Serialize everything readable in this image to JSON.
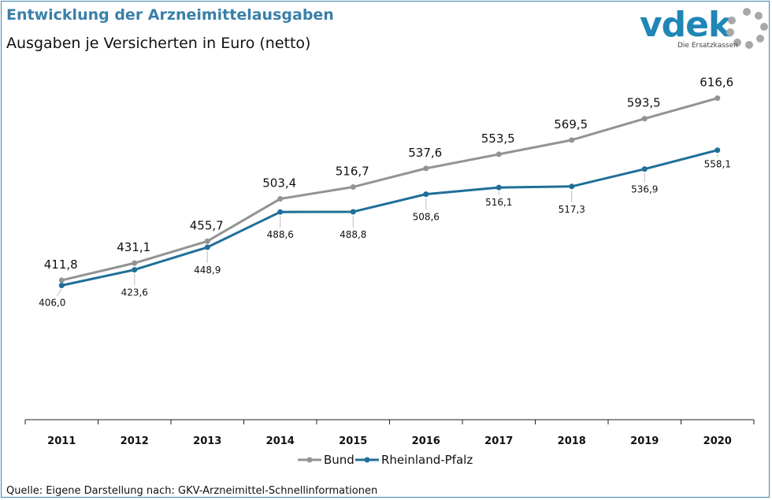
{
  "title": "Entwicklung der Arzneimittelausgaben",
  "subtitle": "Ausgaben je Versicherten in Euro (netto)",
  "logo": {
    "word": "vdek",
    "tagline": "Die Ersatzkassen",
    "icon": "dotted-ring-logo"
  },
  "source": "Quelle: Eigene Darstellung nach: GKV-Arzneimittel-Schnellinformationen",
  "colors": {
    "bund": "#939393",
    "rlp": "#1f6f98",
    "accent": "#3a7fa8"
  },
  "chart_data": {
    "type": "line",
    "title": "",
    "xlabel": "",
    "ylabel": "",
    "categories": [
      "2011",
      "2012",
      "2013",
      "2014",
      "2015",
      "2016",
      "2017",
      "2018",
      "2019",
      "2020"
    ],
    "series": [
      {
        "name": "Bund",
        "values": [
          411.8,
          431.1,
          455.7,
          503.4,
          516.7,
          537.6,
          553.5,
          569.5,
          593.5,
          616.6
        ],
        "labels": [
          "411,8",
          "431,1",
          "455,7",
          "503,4",
          "516,7",
          "537,6",
          "553,5",
          "569,5",
          "593,5",
          "616,6"
        ]
      },
      {
        "name": "Rheinland-Pfalz",
        "values": [
          406.0,
          423.6,
          448.9,
          488.6,
          488.8,
          508.6,
          516.1,
          517.3,
          536.9,
          558.1
        ],
        "labels": [
          "406,0",
          "423,6",
          "448,9",
          "488,6",
          "488,8",
          "508,6",
          "516,1",
          "517,3",
          "536,9",
          "558,1"
        ]
      }
    ],
    "ylim": [
      255,
      665
    ],
    "grid": false,
    "legend": "bottom-center"
  }
}
